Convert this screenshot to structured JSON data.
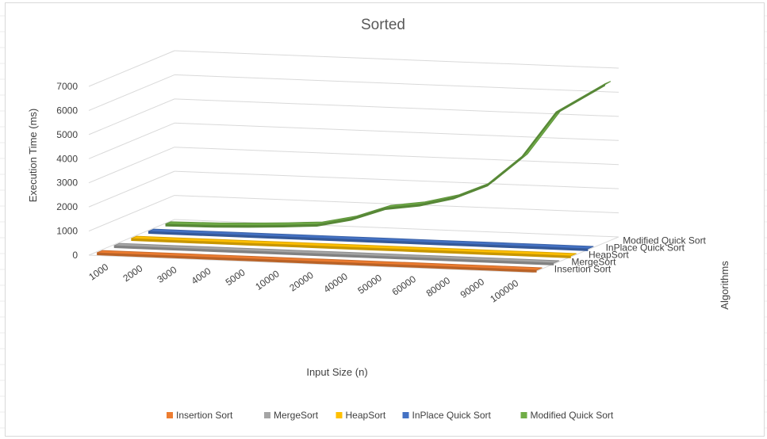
{
  "chart_data": {
    "type": "line",
    "subtype": "3d-line",
    "title": "Sorted",
    "xlabel": "Input Size (n)",
    "ylabel": "Execution Time (ms)",
    "zlabel": "Algorithms",
    "categories": [
      "1000",
      "2000",
      "3000",
      "4000",
      "5000",
      "10000",
      "20000",
      "40000",
      "50000",
      "60000",
      "80000",
      "90000",
      "100000"
    ],
    "y_ticks": [
      "0",
      "1000",
      "2000",
      "3000",
      "4000",
      "5000",
      "6000",
      "7000"
    ],
    "ylim": [
      0,
      7000
    ],
    "grid": true,
    "legend_position": "bottom",
    "series": [
      {
        "name": "Insertion Sort",
        "color": "#ED7D31",
        "values": [
          0,
          0,
          0,
          0,
          0,
          0,
          0,
          0,
          0,
          0,
          0,
          0,
          0
        ]
      },
      {
        "name": "MergeSort",
        "color": "#A5A5A5",
        "values": [
          0,
          0,
          0,
          0,
          0,
          0,
          0,
          0,
          0,
          0,
          0,
          0,
          0
        ]
      },
      {
        "name": "HeapSort",
        "color": "#FFC000",
        "values": [
          0,
          0,
          0,
          0,
          0,
          0,
          0,
          0,
          0,
          0,
          0,
          0,
          0
        ]
      },
      {
        "name": "InPlace Quick Sort",
        "color": "#4472C4",
        "values": [
          0,
          0,
          0,
          0,
          0,
          0,
          0,
          0,
          0,
          0,
          0,
          0,
          0
        ]
      },
      {
        "name": "Modified Quick Sort",
        "color": "#70AD47",
        "values": [
          10,
          40,
          90,
          160,
          250,
          550,
          1050,
          1250,
          1600,
          2200,
          3400,
          5300,
          6550
        ]
      }
    ]
  }
}
